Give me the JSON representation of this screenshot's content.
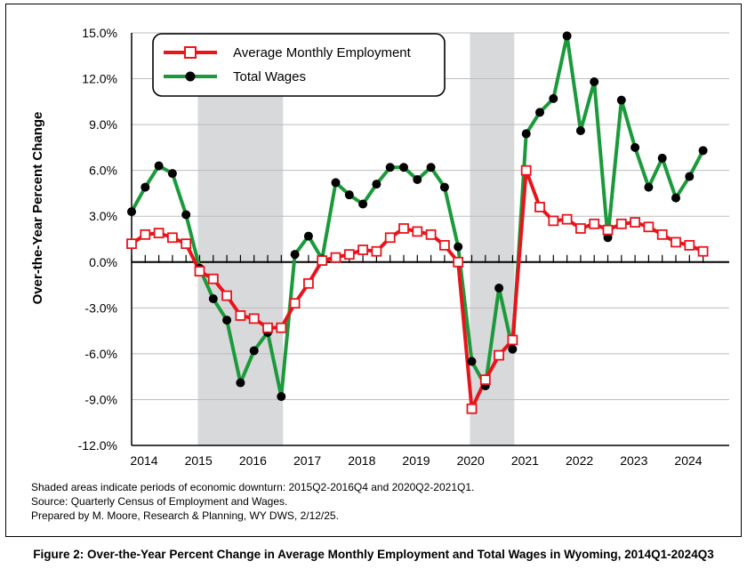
{
  "chart_data": {
    "type": "line",
    "title": "",
    "xlabel": "",
    "ylabel": "Over-the-Year Percent Change",
    "ylim": [
      -12,
      15
    ],
    "yticks": [
      "15.0%",
      "12.0%",
      "9.0%",
      "6.0%",
      "3.0%",
      "0.0%",
      "-3.0%",
      "-6.0%",
      "-9.0%",
      "-12.0%"
    ],
    "year_labels": [
      "2014",
      "2015",
      "2016",
      "2017",
      "2018",
      "2019",
      "2020",
      "2021",
      "2022",
      "2023",
      "2024"
    ],
    "x": [
      "2014Q1",
      "2014Q2",
      "2014Q3",
      "2014Q4",
      "2015Q1",
      "2015Q2",
      "2015Q3",
      "2015Q4",
      "2016Q1",
      "2016Q2",
      "2016Q3",
      "2016Q4",
      "2017Q1",
      "2017Q2",
      "2017Q3",
      "2017Q4",
      "2018Q1",
      "2018Q2",
      "2018Q3",
      "2018Q4",
      "2019Q1",
      "2019Q2",
      "2019Q3",
      "2019Q4",
      "2020Q1",
      "2020Q2",
      "2020Q3",
      "2020Q4",
      "2021Q1",
      "2021Q2",
      "2021Q3",
      "2021Q4",
      "2022Q1",
      "2022Q2",
      "2022Q3",
      "2022Q4",
      "2023Q1",
      "2023Q2",
      "2023Q3",
      "2023Q4",
      "2024Q1",
      "2024Q2",
      "2024Q3"
    ],
    "series": [
      {
        "name": "Average Monthly Employment",
        "color": "#e8141b",
        "marker": "open-square",
        "values": [
          1.2,
          1.8,
          1.9,
          1.6,
          1.2,
          -0.6,
          -1.1,
          -2.2,
          -3.5,
          -3.7,
          -4.3,
          -4.3,
          -2.7,
          -1.4,
          0.1,
          0.3,
          0.5,
          0.8,
          0.7,
          1.6,
          2.2,
          2.0,
          1.8,
          1.1,
          0.0,
          -9.6,
          -7.7,
          -6.1,
          -5.1,
          6.0,
          3.6,
          2.7,
          2.8,
          2.2,
          2.5,
          2.1,
          2.5,
          2.6,
          2.3,
          1.8,
          1.3,
          1.1,
          0.7
        ]
      },
      {
        "name": "Total Wages",
        "color": "#1a9a3a",
        "marker": "filled-circle",
        "values": [
          3.3,
          4.9,
          6.3,
          5.8,
          3.1,
          -0.4,
          -2.4,
          -3.8,
          -7.9,
          -5.8,
          -4.6,
          -8.8,
          0.5,
          1.7,
          0.2,
          5.2,
          4.4,
          3.8,
          5.1,
          6.2,
          6.2,
          5.4,
          6.2,
          4.9,
          1.0,
          -6.5,
          -8.1,
          -1.7,
          -5.7,
          8.4,
          9.8,
          10.7,
          14.8,
          8.6,
          11.8,
          1.6,
          10.6,
          7.5,
          4.9,
          6.8,
          4.2,
          5.6,
          7.3
        ]
      }
    ],
    "shaded_periods": [
      {
        "start": "2015Q2",
        "end": "2016Q4"
      },
      {
        "start": "2020Q2",
        "end": "2021Q1"
      }
    ],
    "legend_position": "top-left",
    "grid": "horizontal"
  },
  "notes": [
    "Shaded areas indicate periods of economic downturn: 2015Q2-2016Q4 and 2020Q2-2021Q1.",
    "Source: Quarterly Census of Employment and Wages.",
    "Prepared by M. Moore, Research & Planning, WY DWS, 2/12/25."
  ],
  "caption": "Figure 2: Over-the-Year Percent Change in Average Monthly Employment and Total Wages in Wyoming, 2014Q1-2024Q3",
  "colors": {
    "shade": "#d8d9db",
    "grid": "#bdbdbd",
    "axis": "#000000"
  }
}
